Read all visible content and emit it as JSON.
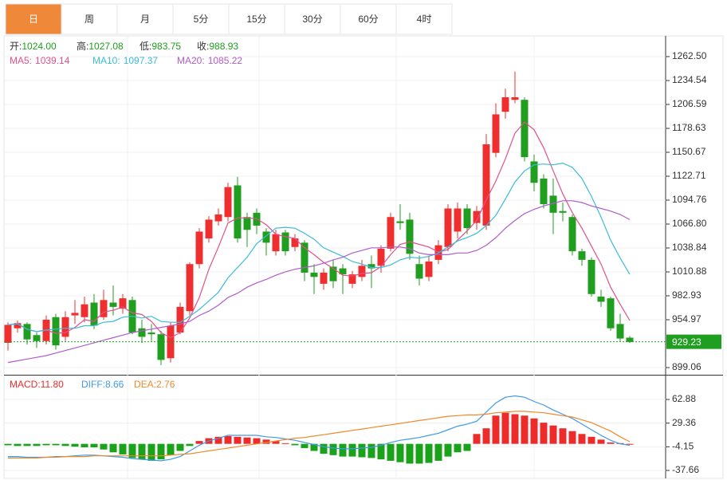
{
  "tabs": [
    "日",
    "周",
    "月",
    "5分",
    "15分",
    "30分",
    "60分",
    "4时"
  ],
  "active_tab": 0,
  "chart_data": [
    {
      "type": "candlestick",
      "ohlc": [
        {
          "name": "开:",
          "value": "1024.00"
        },
        {
          "name": "高:",
          "value": "1027.08"
        },
        {
          "name": "低:",
          "value": "983.75"
        },
        {
          "name": "收:",
          "value": "988.93"
        }
      ],
      "up_color": "#ef2f2f",
      "down_color": "#1f9e1f",
      "open": [
        928,
        945,
        950,
        937,
        930,
        958,
        935,
        960,
        958,
        975,
        958,
        975,
        968,
        978,
        945,
        940,
        938,
        910,
        940,
        965,
        1020,
        1050,
        1070,
        1075,
        1112,
        1075,
        1080,
        1058,
        1035,
        1057,
        1040,
        1045,
        1010,
        997,
        1017,
        1015,
        997,
        1005,
        1020,
        1018,
        1038,
        1070,
        1072,
        1020,
        1005,
        1025,
        1040,
        1058,
        1085,
        1068,
        1065,
        1150,
        1198,
        1212,
        1212,
        1140,
        1120,
        1100,
        1082,
        1075,
        1035,
        1025,
        982,
        980,
        950,
        934
      ],
      "high": [
        952,
        954,
        952,
        940,
        960,
        962,
        965,
        978,
        982,
        985,
        990,
        995,
        985,
        982,
        955,
        950,
        942,
        952,
        975,
        1022,
        1062,
        1076,
        1085,
        1115,
        1122,
        1080,
        1085,
        1062,
        1060,
        1060,
        1055,
        1048,
        1020,
        1015,
        1025,
        1020,
        1012,
        1025,
        1030,
        1042,
        1080,
        1090,
        1080,
        1030,
        1030,
        1048,
        1090,
        1092,
        1090,
        1088,
        1172,
        1208,
        1225,
        1245,
        1215,
        1148,
        1125,
        1120,
        1092,
        1078,
        1038,
        1028,
        990,
        982,
        962,
        936
      ],
      "low": [
        919,
        940,
        926,
        922,
        926,
        920,
        930,
        950,
        952,
        944,
        955,
        960,
        962,
        938,
        928,
        930,
        902,
        905,
        938,
        960,
        1015,
        1045,
        1065,
        1070,
        1045,
        1040,
        1055,
        1030,
        1030,
        1030,
        1035,
        1000,
        985,
        990,
        992,
        985,
        992,
        1000,
        992,
        1010,
        1035,
        1060,
        1025,
        995,
        1000,
        1020,
        1035,
        1050,
        1055,
        1060,
        1060,
        1145,
        1190,
        1208,
        1140,
        1105,
        1085,
        1055,
        1070,
        1030,
        1018,
        982,
        970,
        942,
        930,
        928
      ],
      "close": [
        949,
        951,
        932,
        930,
        955,
        925,
        958,
        963,
        973,
        948,
        978,
        970,
        980,
        940,
        935,
        938,
        908,
        948,
        970,
        1020,
        1058,
        1072,
        1078,
        1110,
        1050,
        1060,
        1065,
        1045,
        1055,
        1035,
        1050,
        1010,
        1005,
        1010,
        1000,
        1008,
        1008,
        1018,
        1015,
        1038,
        1075,
        1068,
        1032,
        1003,
        1023,
        1042,
        1085,
        1085,
        1062,
        1082,
        1160,
        1195,
        1215,
        1215,
        1145,
        1115,
        1090,
        1080,
        1080,
        1035,
        1025,
        985,
        976,
        945,
        933,
        929
      ],
      "lines": [
        {
          "name": "MA5:",
          "last": 1039.14,
          "color": "#e2508a",
          "values": [
            949,
            950,
            944,
            941,
            943,
            939,
            940,
            946,
            955,
            953,
            964,
            966,
            970,
            963,
            961,
            953,
            940,
            934,
            940,
            957,
            981,
            1014,
            1040,
            1068,
            1074,
            1074,
            1073,
            1066,
            1055,
            1052,
            1050,
            1039,
            1031,
            1022,
            1015,
            1007,
            1006,
            1009,
            1010,
            1017,
            1031,
            1043,
            1046,
            1043,
            1040,
            1034,
            1037,
            1048,
            1059,
            1071,
            1095,
            1117,
            1143,
            1173,
            1186,
            1177,
            1156,
            1129,
            1102,
            1080,
            1062,
            1041,
            1020,
            993,
            973,
            954
          ]
        },
        {
          "name": "MA10:",
          "last": 1097.37,
          "color": "#39bcd8",
          "values": [
            949,
            950,
            944,
            941,
            943,
            944,
            945,
            945,
            948,
            948,
            952,
            953,
            958,
            959,
            957,
            959,
            953,
            952,
            952,
            959,
            967,
            977,
            987,
            1004,
            1016,
            1028,
            1044,
            1053,
            1062,
            1063,
            1062,
            1056,
            1049,
            1039,
            1034,
            1029,
            1023,
            1020,
            1016,
            1016,
            1019,
            1025,
            1028,
            1027,
            1029,
            1033,
            1040,
            1047,
            1051,
            1056,
            1065,
            1077,
            1096,
            1116,
            1129,
            1136,
            1137,
            1136,
            1138,
            1133,
            1120,
            1099,
            1075,
            1048,
            1027,
            1008
          ]
        },
        {
          "name": "MA20:",
          "last": 1085.22,
          "color": "#b05cc8",
          "values": [
            905,
            907,
            909,
            911,
            913,
            916,
            919,
            922,
            925,
            928,
            931,
            934,
            937,
            940,
            942,
            944,
            946,
            948,
            950,
            953,
            960,
            965,
            972,
            981,
            986,
            993,
            998,
            1002,
            1007,
            1011,
            1014,
            1016,
            1018,
            1021,
            1025,
            1028,
            1033,
            1036,
            1039,
            1039,
            1040,
            1040,
            1038,
            1033,
            1031,
            1031,
            1031,
            1033,
            1033,
            1036,
            1042,
            1051,
            1062,
            1071,
            1079,
            1084,
            1088,
            1091,
            1094,
            1094,
            1092,
            1088,
            1085,
            1082,
            1078,
            1072
          ]
        }
      ],
      "last_price": 929.23,
      "ylim": [
        890.67,
        1286.73
      ],
      "yticks": [
        {
          "value": 899.06,
          "label": "899.06"
        },
        954.97,
        982.93,
        1010.88,
        1038.84,
        {
          "value": 1066.8,
          "label": "1066.80"
        },
        1094.76,
        1122.71,
        1150.67,
        1178.63,
        1206.59,
        1234.54,
        {
          "value": 1262.5,
          "label": "1262.50"
        }
      ],
      "grid": true
    },
    {
      "type": "macd",
      "series": [
        {
          "name": "MACD:",
          "last": {
            "value": 11.8,
            "label": "11.80"
          },
          "color": "#ee2b2b",
          "down_color": "#1aa21a",
          "kind": "bar",
          "values": [
            -2,
            -3,
            -3,
            -3,
            -2,
            -2,
            -3,
            -4,
            -5,
            -5,
            -8,
            -12,
            -15,
            -20,
            -22,
            -24,
            -22,
            -16,
            -10,
            -3,
            4,
            8,
            10,
            11,
            10,
            9,
            8,
            6,
            4,
            1,
            -2,
            -6,
            -10,
            -14,
            -16,
            -18,
            -18,
            -19,
            -20,
            -22,
            -24,
            -26,
            -28,
            -28,
            -27,
            -24,
            -18,
            -12,
            -10,
            14,
            22,
            40,
            44,
            42,
            40,
            36,
            30,
            26,
            22,
            18,
            14,
            10,
            6,
            2,
            1,
            0
          ]
        },
        {
          "name": "DIFF:",
          "last": 8.66,
          "color": "#3f9ae8",
          "kind": "line",
          "values": [
            -18,
            -18,
            -19,
            -19,
            -19,
            -18,
            -18,
            -17,
            -16,
            -16,
            -17,
            -18,
            -19,
            -21,
            -22,
            -23,
            -24,
            -22,
            -18,
            -10,
            -2,
            4,
            8,
            12,
            12,
            12,
            12,
            10,
            9,
            7,
            5,
            2,
            -1,
            -4,
            -6,
            -7,
            -7,
            -6,
            -5,
            -2,
            2,
            5,
            7,
            9,
            12,
            15,
            20,
            25,
            28,
            32,
            45,
            58,
            66,
            68,
            66,
            60,
            55,
            48,
            42,
            36,
            28,
            20,
            12,
            5,
            0,
            -2
          ]
        },
        {
          "name": "DEA:",
          "last": 2.76,
          "color": "#f0892a",
          "kind": "line",
          "values": [
            -20,
            -20,
            -20,
            -20,
            -19,
            -19,
            -18,
            -18,
            -18,
            -17,
            -17,
            -17,
            -17,
            -17,
            -17,
            -17,
            -17,
            -16,
            -15,
            -14,
            -12,
            -10,
            -8,
            -6,
            -4,
            -2,
            0,
            2,
            4,
            6,
            8,
            9,
            11,
            13,
            15,
            17,
            19,
            21,
            23,
            25,
            27,
            29,
            31,
            33,
            35,
            37,
            39,
            40,
            41,
            41,
            42,
            44,
            45,
            46,
            46,
            45,
            44,
            42,
            40,
            38,
            34,
            30,
            24,
            18,
            10,
            3
          ]
        }
      ],
      "ylim": [
        -48.96,
        95.64
      ],
      "yticks": [
        -37.66,
        -4.15,
        29.36,
        62.88
      ],
      "grid": true
    }
  ]
}
